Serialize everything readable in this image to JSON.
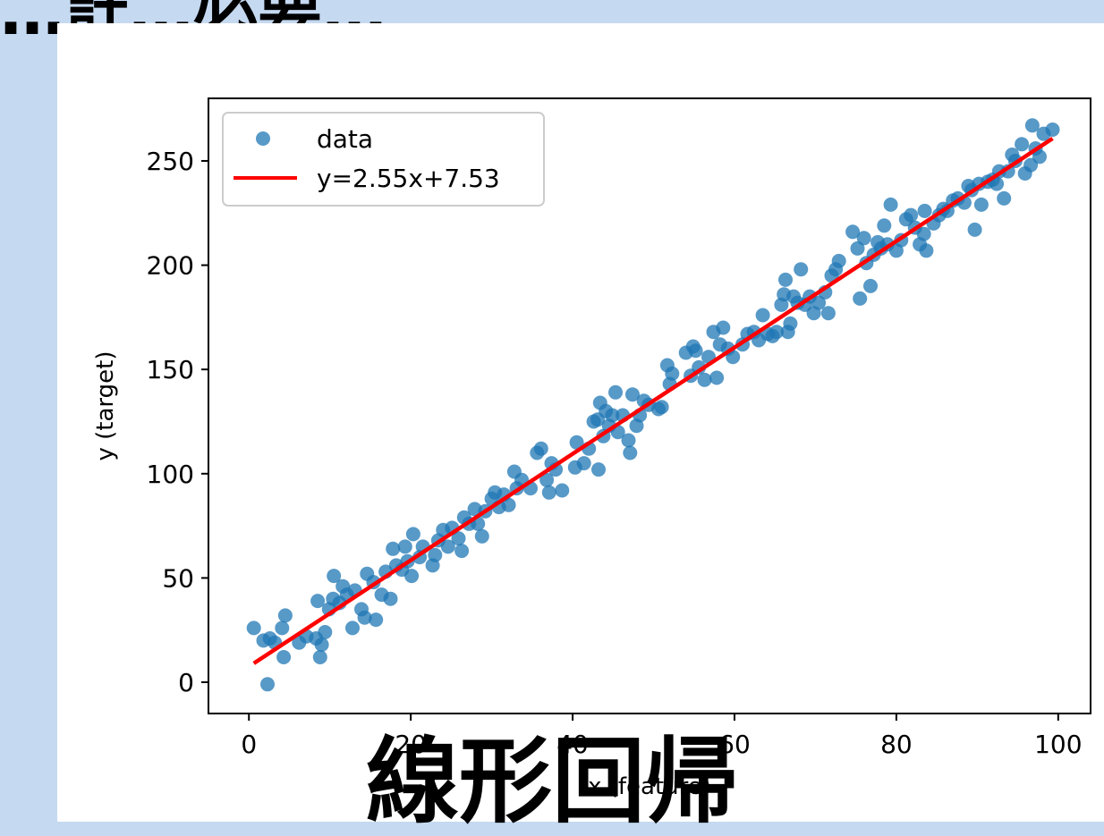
{
  "slide": {
    "top_heading": "…計…必要…",
    "bottom_title": "線形回帰"
  },
  "colors": {
    "background": "#c5d9f1",
    "panel": "#ffffff",
    "points": "#1f77b4",
    "fit_line": "#ff0000"
  },
  "chart_data": {
    "type": "scatter",
    "title": "",
    "xlabel": "x (feature)",
    "ylabel": "y (target)",
    "xlim": [
      -5,
      104
    ],
    "ylim": [
      -15,
      280
    ],
    "xticks": [
      0,
      20,
      40,
      60,
      80,
      100
    ],
    "yticks": [
      0,
      50,
      100,
      150,
      200,
      250
    ],
    "grid": false,
    "legend": {
      "placement": "top-left",
      "entries": [
        "data",
        "y=2.55x+7.53"
      ]
    },
    "series": [
      {
        "name": "data",
        "kind": "scatter",
        "points": [
          [
            0.6,
            26
          ],
          [
            1.8,
            20
          ],
          [
            2.3,
            -1
          ],
          [
            2.6,
            21
          ],
          [
            3.2,
            19
          ],
          [
            4.1,
            26
          ],
          [
            4.5,
            32
          ],
          [
            4.3,
            12
          ],
          [
            6.2,
            19
          ],
          [
            7.1,
            22
          ],
          [
            8.3,
            21
          ],
          [
            8.5,
            39
          ],
          [
            8.8,
            12
          ],
          [
            9.0,
            18
          ],
          [
            9.4,
            24
          ],
          [
            9.9,
            35
          ],
          [
            10.4,
            40
          ],
          [
            10.5,
            51
          ],
          [
            11.2,
            38
          ],
          [
            11.6,
            46
          ],
          [
            12.1,
            42
          ],
          [
            12.8,
            26
          ],
          [
            13.1,
            44
          ],
          [
            13.9,
            35
          ],
          [
            14.3,
            31
          ],
          [
            14.6,
            52
          ],
          [
            15.4,
            48
          ],
          [
            15.7,
            30
          ],
          [
            16.4,
            42
          ],
          [
            16.9,
            53
          ],
          [
            17.5,
            40
          ],
          [
            17.8,
            64
          ],
          [
            18.2,
            56
          ],
          [
            18.9,
            54
          ],
          [
            19.3,
            65
          ],
          [
            19.6,
            58
          ],
          [
            20.1,
            51
          ],
          [
            20.3,
            71
          ],
          [
            21.1,
            60
          ],
          [
            21.5,
            65
          ],
          [
            22.7,
            56
          ],
          [
            23.0,
            61
          ],
          [
            23.4,
            68
          ],
          [
            24.0,
            73
          ],
          [
            24.6,
            65
          ],
          [
            25.1,
            74
          ],
          [
            25.9,
            69
          ],
          [
            26.3,
            63
          ],
          [
            26.6,
            79
          ],
          [
            27.2,
            76
          ],
          [
            27.9,
            83
          ],
          [
            28.3,
            76
          ],
          [
            28.8,
            70
          ],
          [
            29.2,
            82
          ],
          [
            30.0,
            88
          ],
          [
            30.4,
            91
          ],
          [
            30.9,
            84
          ],
          [
            31.5,
            90
          ],
          [
            32.1,
            85
          ],
          [
            32.8,
            101
          ],
          [
            33.1,
            93
          ],
          [
            33.7,
            97
          ],
          [
            34.8,
            93
          ],
          [
            35.6,
            110
          ],
          [
            36.1,
            112
          ],
          [
            36.8,
            97
          ],
          [
            37.1,
            91
          ],
          [
            37.4,
            105
          ],
          [
            37.9,
            102
          ],
          [
            38.7,
            92
          ],
          [
            40.3,
            103
          ],
          [
            40.5,
            115
          ],
          [
            41.4,
            105
          ],
          [
            42.0,
            112
          ],
          [
            42.6,
            125
          ],
          [
            43.1,
            126
          ],
          [
            43.2,
            102
          ],
          [
            43.4,
            134
          ],
          [
            43.8,
            118
          ],
          [
            44.1,
            130
          ],
          [
            44.5,
            123
          ],
          [
            44.9,
            128
          ],
          [
            45.3,
            139
          ],
          [
            45.6,
            120
          ],
          [
            46.2,
            128
          ],
          [
            46.9,
            116
          ],
          [
            47.1,
            110
          ],
          [
            47.4,
            138
          ],
          [
            47.9,
            123
          ],
          [
            48.3,
            128
          ],
          [
            48.8,
            135
          ],
          [
            49.4,
            133
          ],
          [
            50.6,
            131
          ],
          [
            51.0,
            132
          ],
          [
            51.7,
            152
          ],
          [
            52.0,
            143
          ],
          [
            52.3,
            148
          ],
          [
            54.0,
            158
          ],
          [
            54.6,
            147
          ],
          [
            54.9,
            161
          ],
          [
            55.2,
            159
          ],
          [
            55.6,
            151
          ],
          [
            56.3,
            145
          ],
          [
            56.8,
            156
          ],
          [
            57.4,
            168
          ],
          [
            57.8,
            146
          ],
          [
            58.2,
            162
          ],
          [
            58.6,
            170
          ],
          [
            59.2,
            160
          ],
          [
            59.8,
            156
          ],
          [
            61.0,
            162
          ],
          [
            61.6,
            167
          ],
          [
            62.4,
            168
          ],
          [
            63.0,
            164
          ],
          [
            63.5,
            176
          ],
          [
            64.1,
            167
          ],
          [
            64.7,
            166
          ],
          [
            65.2,
            168
          ],
          [
            65.8,
            181
          ],
          [
            66.1,
            186
          ],
          [
            66.3,
            193
          ],
          [
            66.6,
            168
          ],
          [
            66.9,
            172
          ],
          [
            67.3,
            185
          ],
          [
            67.8,
            182
          ],
          [
            68.2,
            198
          ],
          [
            68.7,
            181
          ],
          [
            69.3,
            185
          ],
          [
            69.8,
            177
          ],
          [
            70.4,
            182
          ],
          [
            71.2,
            187
          ],
          [
            71.6,
            177
          ],
          [
            72.0,
            195
          ],
          [
            72.5,
            198
          ],
          [
            72.9,
            202
          ],
          [
            74.6,
            216
          ],
          [
            75.2,
            208
          ],
          [
            75.5,
            184
          ],
          [
            76.0,
            213
          ],
          [
            76.3,
            201
          ],
          [
            76.8,
            190
          ],
          [
            77.2,
            205
          ],
          [
            77.7,
            211
          ],
          [
            78.1,
            208
          ],
          [
            78.5,
            219
          ],
          [
            78.9,
            210
          ],
          [
            79.3,
            229
          ],
          [
            80.0,
            207
          ],
          [
            80.6,
            212
          ],
          [
            81.2,
            222
          ],
          [
            81.8,
            224
          ],
          [
            82.3,
            218
          ],
          [
            82.9,
            210
          ],
          [
            83.4,
            215
          ],
          [
            83.7,
            207
          ],
          [
            83.5,
            226
          ],
          [
            84.6,
            220
          ],
          [
            85.3,
            224
          ],
          [
            85.8,
            227
          ],
          [
            86.3,
            226
          ],
          [
            87.0,
            231
          ],
          [
            87.6,
            232
          ],
          [
            88.4,
            230
          ],
          [
            88.9,
            238
          ],
          [
            89.3,
            236
          ],
          [
            89.7,
            217
          ],
          [
            90.2,
            239
          ],
          [
            90.5,
            229
          ],
          [
            91.3,
            240
          ],
          [
            91.9,
            241
          ],
          [
            92.4,
            239
          ],
          [
            92.7,
            245
          ],
          [
            93.3,
            232
          ],
          [
            93.8,
            245
          ],
          [
            94.3,
            253
          ],
          [
            94.7,
            250
          ],
          [
            95.5,
            258
          ],
          [
            95.9,
            244
          ],
          [
            96.6,
            248
          ],
          [
            96.8,
            267
          ],
          [
            97.2,
            256
          ],
          [
            97.7,
            252
          ],
          [
            98.2,
            263
          ],
          [
            99.3,
            265
          ]
        ]
      },
      {
        "name": "y=2.55x+7.53",
        "kind": "line",
        "slope": 2.55,
        "intercept": 7.53,
        "x_range": [
          0.6,
          99.3
        ]
      }
    ]
  }
}
